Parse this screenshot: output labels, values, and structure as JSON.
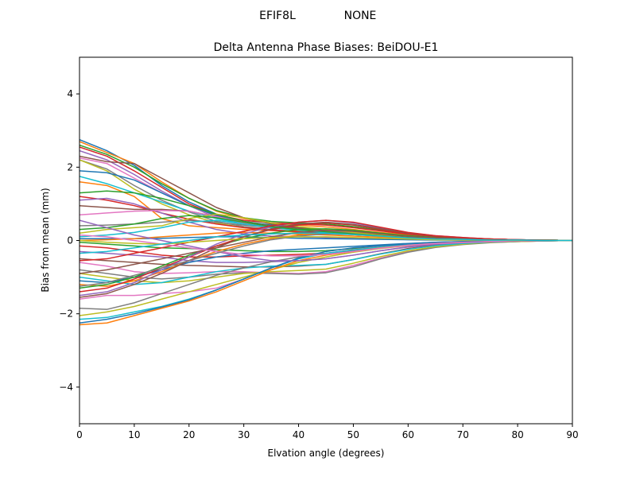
{
  "figure": {
    "suptitle_left": "EFIF8L",
    "suptitle_right": "NONE"
  },
  "chart_data": {
    "type": "line",
    "title": "Delta Antenna Phase Biases: BeiDOU-E1",
    "xlabel": "Elvation angle (degrees)",
    "ylabel": "Bias from mean (mm)",
    "xlim": [
      0,
      90
    ],
    "ylim": [
      -5,
      5
    ],
    "xticks": [
      0,
      10,
      20,
      30,
      40,
      50,
      60,
      70,
      80,
      90
    ],
    "yticks": [
      -4,
      -2,
      0,
      2,
      4
    ],
    "grid": false,
    "legend": "none",
    "x": [
      0,
      5,
      10,
      15,
      20,
      25,
      30,
      35,
      40,
      45,
      50,
      55,
      60,
      65,
      70,
      75,
      80,
      85,
      90
    ],
    "colors": [
      "#1f77b4",
      "#ff7f0e",
      "#2ca02c",
      "#d62728",
      "#9467bd",
      "#8c564b",
      "#e377c2",
      "#7f7f7f",
      "#bcbd22",
      "#17becf"
    ],
    "series": [
      {
        "values": [
          2.75,
          2.45,
          2.05,
          1.5,
          1.05,
          0.72,
          0.52,
          0.42,
          0.35,
          0.3,
          0.25,
          0.18,
          0.12,
          0.08,
          0.05,
          0.03,
          0.02,
          0.01,
          0
        ]
      },
      {
        "values": [
          2.7,
          2.4,
          2.1,
          1.6,
          1.15,
          0.8,
          0.6,
          0.48,
          0.42,
          0.37,
          0.3,
          0.22,
          0.15,
          0.1,
          0.06,
          0.04,
          0.02,
          0.01,
          0
        ]
      },
      {
        "values": [
          2.6,
          2.35,
          2.0,
          1.55,
          1.15,
          0.82,
          0.62,
          0.52,
          0.48,
          0.45,
          0.38,
          0.28,
          0.18,
          0.11,
          0.07,
          0.04,
          0.02,
          0.01,
          0
        ]
      },
      {
        "values": [
          2.55,
          2.3,
          1.9,
          1.45,
          1.0,
          0.7,
          0.55,
          0.48,
          0.45,
          0.42,
          0.35,
          0.26,
          0.17,
          0.11,
          0.07,
          0.04,
          0.02,
          0.01,
          0
        ]
      },
      {
        "values": [
          2.45,
          2.2,
          1.8,
          1.35,
          0.95,
          0.62,
          0.45,
          0.38,
          0.33,
          0.28,
          0.23,
          0.17,
          0.11,
          0.07,
          0.04,
          0.03,
          0.02,
          0.01,
          0
        ]
      },
      {
        "values": [
          2.3,
          2.15,
          2.1,
          1.7,
          1.3,
          0.9,
          0.62,
          0.45,
          0.35,
          0.28,
          0.22,
          0.16,
          0.1,
          0.06,
          0.04,
          0.02,
          0.01,
          0.01,
          0
        ]
      },
      {
        "values": [
          2.25,
          2.1,
          1.7,
          1.3,
          0.95,
          0.65,
          0.48,
          0.38,
          0.3,
          0.25,
          0.2,
          0.15,
          0.1,
          0.06,
          0.04,
          0.02,
          0.01,
          0.01,
          0
        ]
      },
      {
        "values": [
          2.2,
          1.95,
          1.5,
          1.1,
          0.78,
          0.52,
          0.38,
          0.3,
          0.25,
          0.22,
          0.18,
          0.13,
          0.09,
          0.06,
          0.04,
          0.02,
          0.01,
          0.01,
          0
        ]
      },
      {
        "values": [
          2.2,
          1.9,
          1.4,
          1.0,
          0.7,
          0.48,
          0.35,
          0.28,
          0.22,
          0.2,
          0.17,
          0.12,
          0.08,
          0.05,
          0.03,
          0.02,
          0.01,
          0.01,
          0
        ]
      },
      {
        "values": [
          1.75,
          1.55,
          1.3,
          1.05,
          0.8,
          0.6,
          0.45,
          0.36,
          0.3,
          0.26,
          0.2,
          0.15,
          0.1,
          0.06,
          0.04,
          0.02,
          0.01,
          0.01,
          0
        ]
      },
      {
        "values": [
          1.9,
          1.85,
          1.65,
          1.3,
          0.95,
          0.68,
          0.5,
          0.4,
          0.33,
          0.28,
          0.22,
          0.16,
          0.1,
          0.06,
          0.04,
          0.02,
          0.01,
          0.01,
          0
        ]
      },
      {
        "values": [
          1.6,
          1.5,
          1.2,
          0.6,
          0.4,
          0.35,
          0.3,
          0.27,
          0.25,
          0.22,
          0.18,
          0.13,
          0.08,
          0.05,
          0.03,
          0.02,
          0.01,
          0.01,
          0
        ]
      },
      {
        "values": [
          1.3,
          1.35,
          1.3,
          1.15,
          0.95,
          0.72,
          0.52,
          0.4,
          0.32,
          0.27,
          0.22,
          0.16,
          0.1,
          0.06,
          0.04,
          0.02,
          0.01,
          0.01,
          0
        ]
      },
      {
        "values": [
          1.2,
          1.1,
          0.95,
          0.75,
          0.58,
          0.45,
          0.35,
          0.28,
          0.24,
          0.2,
          0.16,
          0.12,
          0.08,
          0.05,
          0.03,
          0.02,
          0.01,
          0.01,
          0
        ]
      },
      {
        "values": [
          1.1,
          1.15,
          1.0,
          0.75,
          0.5,
          0.3,
          0.18,
          0.12,
          0.1,
          0.08,
          0.06,
          0.05,
          0.03,
          0.02,
          0.01,
          0.01,
          0.01,
          0,
          0
        ]
      },
      {
        "values": [
          0.95,
          0.9,
          0.85,
          0.85,
          0.8,
          0.65,
          0.5,
          0.4,
          0.33,
          0.27,
          0.22,
          0.16,
          0.1,
          0.06,
          0.04,
          0.02,
          0.01,
          0.01,
          0
        ]
      },
      {
        "values": [
          0.7,
          0.75,
          0.8,
          0.82,
          0.8,
          0.65,
          0.5,
          0.38,
          0.3,
          0.25,
          0.2,
          0.15,
          0.1,
          0.06,
          0.04,
          0.02,
          0.01,
          0.01,
          0
        ]
      },
      {
        "values": [
          0.4,
          0.42,
          0.45,
          0.5,
          0.55,
          0.5,
          0.42,
          0.35,
          0.3,
          0.26,
          0.2,
          0.15,
          0.1,
          0.06,
          0.04,
          0.02,
          0.01,
          0.01,
          0
        ]
      },
      {
        "values": [
          0.2,
          0.3,
          0.35,
          0.4,
          0.6,
          0.72,
          0.62,
          0.48,
          0.38,
          0.3,
          0.22,
          0.16,
          0.1,
          0.06,
          0.04,
          0.02,
          0.01,
          0.01,
          0
        ]
      },
      {
        "values": [
          0.1,
          0.15,
          0.22,
          0.35,
          0.5,
          0.55,
          0.45,
          0.35,
          0.28,
          0.22,
          0.17,
          0.12,
          0.08,
          0.05,
          0.03,
          0.02,
          0.01,
          0.01,
          0
        ]
      },
      {
        "values": [
          0.05,
          0.05,
          0.05,
          0.06,
          0.08,
          0.1,
          0.1,
          0.08,
          0.06,
          0.05,
          0.04,
          0.03,
          0.02,
          0.01,
          0.01,
          0,
          0,
          0,
          0
        ]
      },
      {
        "values": [
          0,
          0.02,
          0.05,
          0.1,
          0.15,
          0.2,
          0.22,
          0.2,
          0.18,
          0.15,
          0.12,
          0.09,
          0.06,
          0.04,
          0.02,
          0.01,
          0.01,
          0,
          0
        ]
      },
      {
        "values": [
          -0.05,
          -0.1,
          -0.15,
          -0.2,
          -0.22,
          -0.25,
          -0.28,
          -0.3,
          -0.3,
          -0.28,
          -0.22,
          -0.16,
          -0.1,
          -0.06,
          -0.04,
          -0.02,
          -0.01,
          0,
          0
        ]
      },
      {
        "values": [
          -0.15,
          -0.2,
          -0.3,
          -0.4,
          -0.45,
          -0.45,
          -0.42,
          -0.4,
          -0.38,
          -0.35,
          -0.28,
          -0.2,
          -0.13,
          -0.08,
          -0.05,
          -0.03,
          -0.01,
          0,
          0
        ]
      },
      {
        "values": [
          -0.3,
          -0.35,
          -0.4,
          -0.45,
          -0.55,
          -0.6,
          -0.6,
          -0.58,
          -0.55,
          -0.5,
          -0.4,
          -0.28,
          -0.18,
          -0.11,
          -0.07,
          -0.04,
          -0.02,
          -0.01,
          0
        ]
      },
      {
        "values": [
          -0.5,
          -0.55,
          -0.6,
          -0.65,
          -0.68,
          -0.7,
          -0.72,
          -0.72,
          -0.7,
          -0.65,
          -0.52,
          -0.36,
          -0.22,
          -0.13,
          -0.08,
          -0.04,
          -0.02,
          -0.01,
          0
        ]
      },
      {
        "values": [
          -0.6,
          -0.7,
          -0.85,
          -0.9,
          -0.88,
          -0.85,
          -0.85,
          -0.88,
          -0.9,
          -0.85,
          -0.68,
          -0.48,
          -0.3,
          -0.18,
          -0.1,
          -0.05,
          -0.03,
          -0.01,
          0
        ]
      },
      {
        "values": [
          -0.8,
          -0.9,
          -1.0,
          -1.05,
          -1.0,
          -0.92,
          -0.88,
          -0.9,
          -0.92,
          -0.88,
          -0.72,
          -0.5,
          -0.32,
          -0.19,
          -0.11,
          -0.06,
          -0.03,
          -0.01,
          0
        ]
      },
      {
        "values": [
          -0.9,
          -1.0,
          -1.1,
          -1.15,
          -1.1,
          -1.0,
          -0.9,
          -0.85,
          -0.82,
          -0.78,
          -0.62,
          -0.44,
          -0.28,
          -0.17,
          -0.1,
          -0.05,
          -0.03,
          -0.01,
          0
        ]
      },
      {
        "values": [
          -1.0,
          -1.1,
          -1.2,
          -1.15,
          -1.0,
          -0.85,
          -0.75,
          -0.7,
          -0.68,
          -0.65,
          -0.52,
          -0.37,
          -0.24,
          -0.14,
          -0.08,
          -0.04,
          -0.02,
          -0.01,
          0
        ]
      },
      {
        "values": [
          -1.1,
          -1.15,
          -1.0,
          -0.8,
          -0.6,
          -0.45,
          -0.35,
          -0.28,
          -0.24,
          -0.2,
          -0.16,
          -0.12,
          -0.08,
          -0.05,
          -0.03,
          -0.02,
          -0.01,
          0,
          0
        ]
      },
      {
        "values": [
          -1.2,
          -1.25,
          -1.1,
          -0.85,
          -0.55,
          -0.3,
          -0.1,
          0.05,
          0.15,
          0.2,
          0.18,
          0.13,
          0.08,
          0.05,
          0.03,
          0.02,
          0.01,
          0,
          0
        ]
      },
      {
        "values": [
          -1.3,
          -1.2,
          -1.0,
          -0.7,
          -0.4,
          -0.15,
          0.05,
          0.2,
          0.3,
          0.32,
          0.28,
          0.2,
          0.13,
          0.08,
          0.05,
          0.03,
          0.01,
          0.01,
          0
        ]
      },
      {
        "values": [
          -1.4,
          -1.3,
          -1.05,
          -0.75,
          -0.45,
          -0.15,
          0.1,
          0.3,
          0.42,
          0.48,
          0.42,
          0.3,
          0.19,
          0.11,
          0.07,
          0.04,
          0.02,
          0.01,
          0
        ]
      },
      {
        "values": [
          -1.5,
          -1.4,
          -1.15,
          -0.8,
          -0.45,
          -0.1,
          0.18,
          0.38,
          0.5,
          0.55,
          0.48,
          0.34,
          0.21,
          0.13,
          0.08,
          0.04,
          0.02,
          0.01,
          0
        ]
      },
      {
        "values": [
          -1.55,
          -1.45,
          -1.2,
          -0.9,
          -0.55,
          -0.2,
          0.1,
          0.32,
          0.45,
          0.5,
          0.44,
          0.32,
          0.2,
          0.12,
          0.07,
          0.04,
          0.02,
          0.01,
          0
        ]
      },
      {
        "values": [
          -1.6,
          -1.5,
          -1.5,
          -1.45,
          -1.4,
          -1.3,
          -1.05,
          -0.75,
          -0.5,
          -0.35,
          -0.25,
          -0.17,
          -0.1,
          -0.06,
          -0.04,
          -0.02,
          -0.01,
          0,
          0
        ]
      },
      {
        "values": [
          -1.85,
          -1.88,
          -1.7,
          -1.45,
          -1.2,
          -0.95,
          -0.75,
          -0.58,
          -0.45,
          -0.35,
          -0.26,
          -0.18,
          -0.11,
          -0.07,
          -0.04,
          -0.02,
          -0.01,
          0,
          0
        ]
      },
      {
        "values": [
          -2.05,
          -1.95,
          -1.8,
          -1.6,
          -1.4,
          -1.2,
          -1.0,
          -0.8,
          -0.6,
          -0.45,
          -0.32,
          -0.22,
          -0.14,
          -0.08,
          -0.05,
          -0.03,
          -0.01,
          0,
          0
        ]
      },
      {
        "values": [
          -2.15,
          -2.1,
          -1.95,
          -1.8,
          -1.6,
          -1.35,
          -1.05,
          -0.75,
          -0.5,
          -0.35,
          -0.26,
          -0.18,
          -0.11,
          -0.07,
          -0.04,
          -0.02,
          -0.01,
          0,
          0
        ]
      },
      {
        "values": [
          -2.25,
          -2.15,
          -2.0,
          -1.82,
          -1.62,
          -1.35,
          -1.05,
          -0.75,
          -0.48,
          -0.3,
          -0.2,
          -0.14,
          -0.09,
          -0.05,
          -0.03,
          -0.02,
          -0.01,
          0,
          0
        ]
      },
      {
        "values": [
          -2.3,
          -2.25,
          -2.05,
          -1.85,
          -1.65,
          -1.4,
          -1.1,
          -0.8,
          -0.55,
          -0.4,
          -0.3,
          -0.2,
          -0.13,
          -0.08,
          -0.05,
          -0.03,
          -0.01,
          0,
          0
        ]
      },
      {
        "values": [
          0.3,
          0.35,
          0.45,
          0.6,
          0.68,
          0.62,
          0.5,
          0.38,
          0.3,
          0.24,
          0.18,
          0.13,
          0.08,
          0.05,
          0.03,
          0.02,
          0.01,
          0.01,
          0
        ]
      },
      {
        "values": [
          -0.55,
          -0.5,
          -0.35,
          -0.2,
          -0.05,
          0.1,
          0.25,
          0.4,
          0.5,
          0.55,
          0.5,
          0.36,
          0.22,
          0.13,
          0.08,
          0.04,
          0.02,
          0.01,
          0
        ]
      },
      {
        "values": [
          0.55,
          0.35,
          0.15,
          0.0,
          -0.15,
          -0.3,
          -0.45,
          -0.55,
          -0.55,
          -0.5,
          -0.4,
          -0.28,
          -0.17,
          -0.1,
          -0.06,
          -0.03,
          -0.02,
          -0.01,
          0
        ]
      },
      {
        "values": [
          -0.9,
          -0.8,
          -0.65,
          -0.5,
          -0.35,
          -0.2,
          -0.05,
          0.1,
          0.22,
          0.28,
          0.25,
          0.18,
          0.11,
          0.07,
          0.04,
          0.02,
          0.01,
          0.01,
          0
        ]
      },
      {
        "values": [
          0.15,
          0.1,
          0.0,
          -0.1,
          -0.2,
          -0.3,
          -0.38,
          -0.42,
          -0.42,
          -0.38,
          -0.3,
          -0.21,
          -0.13,
          -0.08,
          -0.05,
          -0.03,
          -0.01,
          0,
          0
        ]
      },
      {
        "values": [
          -1.25,
          -1.15,
          -0.95,
          -0.75,
          -0.55,
          -0.35,
          -0.15,
          0.02,
          0.12,
          0.18,
          0.16,
          0.12,
          0.07,
          0.04,
          0.03,
          0.01,
          0.01,
          0,
          0
        ]
      },
      {
        "values": [
          0.0,
          -0.05,
          -0.08,
          -0.1,
          -0.05,
          0.0,
          0.05,
          0.08,
          0.1,
          0.1,
          0.08,
          0.06,
          0.04,
          0.02,
          0.01,
          0.01,
          0,
          0,
          0
        ]
      },
      {
        "values": [
          -0.35,
          -0.3,
          -0.2,
          -0.1,
          0.0,
          0.1,
          0.15,
          0.18,
          0.2,
          0.2,
          0.16,
          0.12,
          0.07,
          0.04,
          0.03,
          0.01,
          0.01,
          0,
          0
        ]
      }
    ]
  }
}
